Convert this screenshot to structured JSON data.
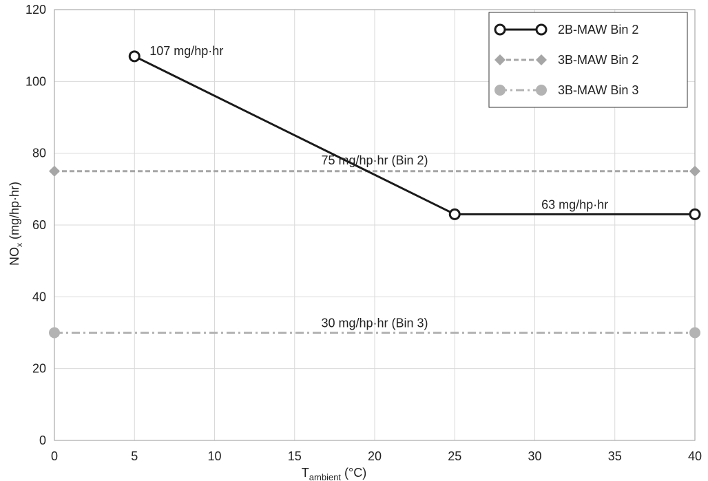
{
  "chart_data": {
    "type": "line",
    "title": "",
    "xlabel": {
      "main": "T",
      "sub": "ambient",
      "unit": " (°C)"
    },
    "ylabel": {
      "main": "NO",
      "sub": "x",
      "unit": " (mg/hp·hr)"
    },
    "xlim": [
      0,
      40
    ],
    "ylim": [
      0,
      120
    ],
    "xticks": [
      0,
      5,
      10,
      15,
      20,
      25,
      30,
      35,
      40
    ],
    "yticks": [
      0,
      20,
      40,
      60,
      80,
      100,
      120
    ],
    "grid": true,
    "legend_position": "top-right",
    "series": [
      {
        "name": "2B-MAW Bin 2",
        "color": "#1a1a1a",
        "line": "solid",
        "marker": "open-circle",
        "points": [
          [
            5,
            107
          ],
          [
            25,
            63
          ],
          [
            40,
            63
          ]
        ]
      },
      {
        "name": "3B-MAW Bin 2",
        "color": "#a6a6a6",
        "line": "dashed",
        "marker": "diamond",
        "points": [
          [
            0,
            75
          ],
          [
            40,
            75
          ]
        ]
      },
      {
        "name": "3B-MAW Bin 3",
        "color": "#b3b3b3",
        "line": "dash-dot",
        "marker": "filled-circle",
        "points": [
          [
            0,
            30
          ],
          [
            40,
            30
          ]
        ]
      }
    ],
    "annotations": [
      {
        "text": "107 mg/hp·hr",
        "x": 5,
        "y": 107
      },
      {
        "text": "75 mg/hp·hr (Bin 2)",
        "x": 20,
        "y": 75
      },
      {
        "text": "63 mg/hp·hr",
        "x": 32.5,
        "y": 63
      },
      {
        "text": "30 mg/hp·hr (Bin 3)",
        "x": 20,
        "y": 30
      }
    ]
  }
}
